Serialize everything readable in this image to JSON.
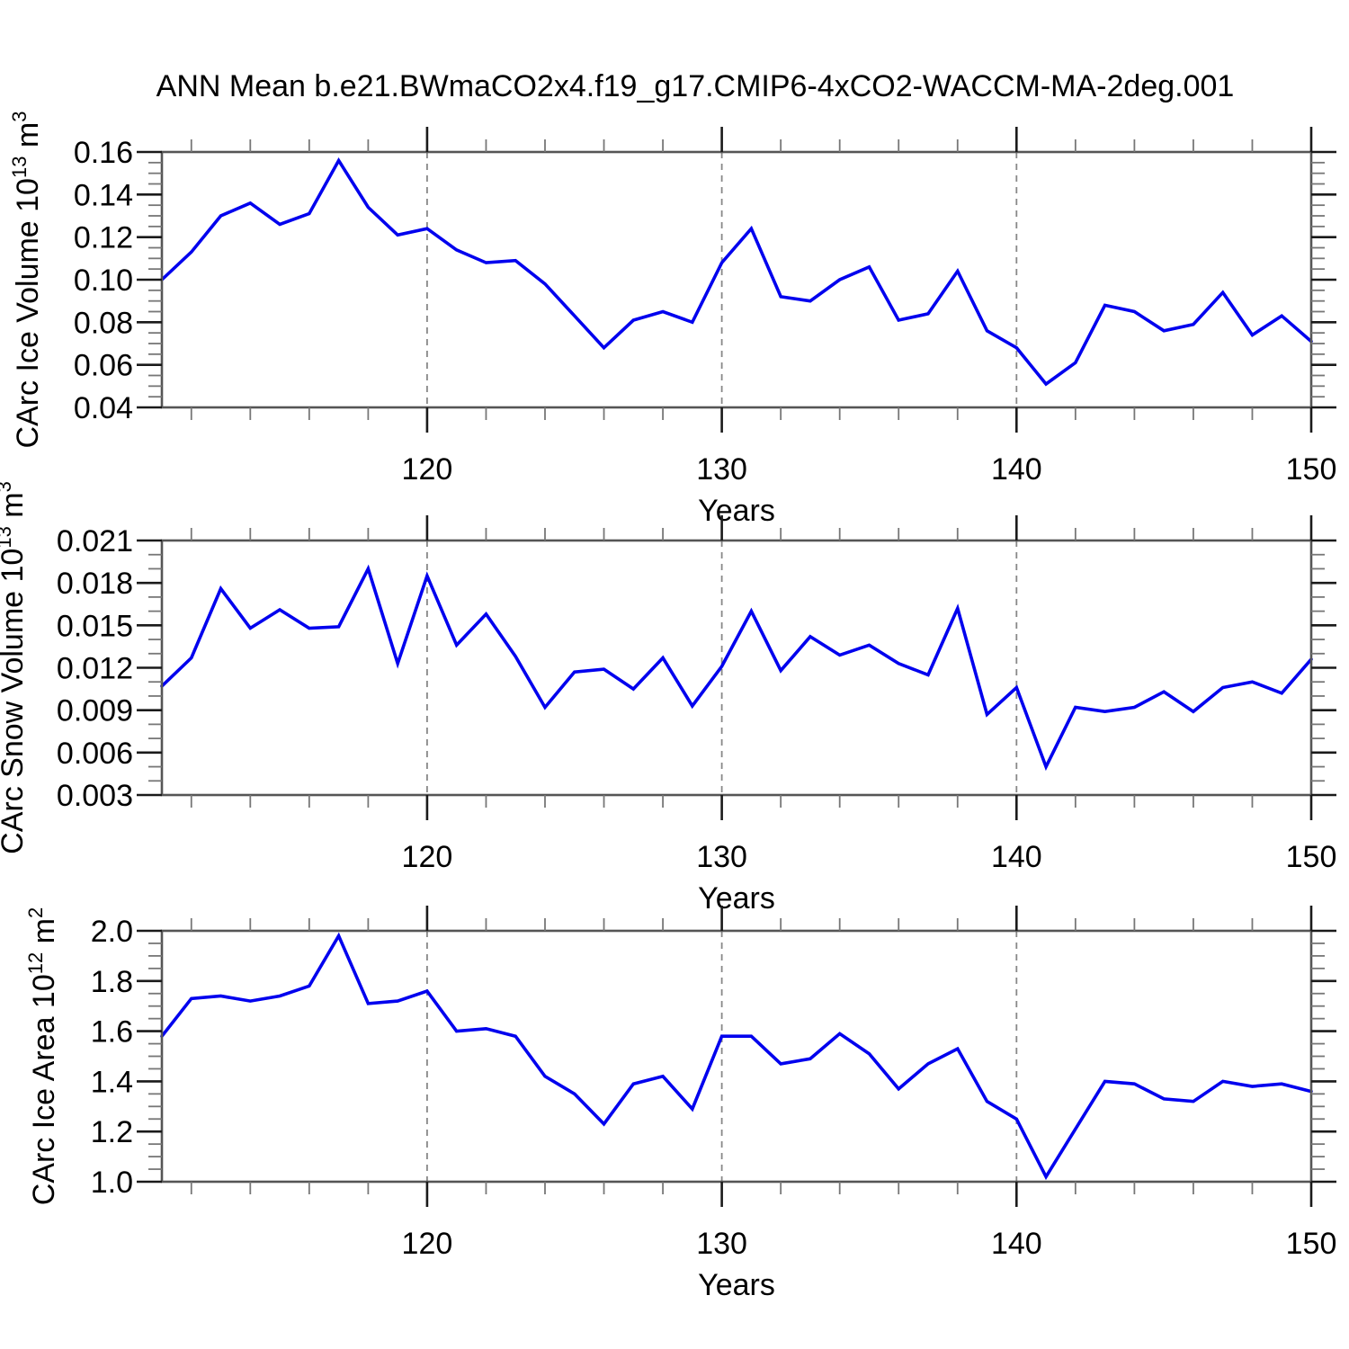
{
  "title": "ANN Mean b.e21.BWmaCO2x4.f19_g17.CMIP6-4xCO2-WACCM-MA-2deg.001",
  "colors": {
    "line": "#0000ee",
    "frame": "#555555",
    "tick_major": "#1a1a1a",
    "tick_minor": "#777777",
    "grid": "#888888",
    "text": "#000000",
    "background": "#ffffff"
  },
  "x_axis": {
    "label": "Years",
    "range": [
      111,
      150
    ],
    "major_ticks": [
      120,
      130,
      140,
      150
    ],
    "minor_tick_step": 2,
    "gridlines": [
      120,
      130,
      140
    ]
  },
  "years": [
    111,
    112,
    113,
    114,
    115,
    116,
    117,
    118,
    119,
    120,
    121,
    122,
    123,
    124,
    125,
    126,
    127,
    128,
    129,
    130,
    131,
    132,
    133,
    134,
    135,
    136,
    137,
    138,
    139,
    140,
    141,
    142,
    143,
    144,
    145,
    146,
    147,
    148,
    149,
    150
  ],
  "chart_data": [
    {
      "type": "line",
      "name": "carc-ice-volume",
      "ylabel_parts": [
        {
          "t": "CArc Ice Volume 10"
        },
        {
          "t": "13",
          "sup": true
        },
        {
          "t": " m"
        },
        {
          "t": "3",
          "sup": true
        }
      ],
      "ylabel_text": "CArc Ice Volume 10^13 m^3",
      "ylim": [
        0.04,
        0.16
      ],
      "ytick_values": [
        0.04,
        0.06,
        0.08,
        0.1,
        0.12,
        0.14,
        0.16
      ],
      "ytick_labels": [
        "0.04",
        "0.06",
        "0.08",
        "0.10",
        "0.12",
        "0.14",
        "0.16"
      ],
      "yminor_step": 0.005,
      "values": [
        0.1,
        0.113,
        0.13,
        0.136,
        0.126,
        0.131,
        0.156,
        0.134,
        0.121,
        0.124,
        0.114,
        0.108,
        0.109,
        0.098,
        0.083,
        0.068,
        0.081,
        0.085,
        0.08,
        0.108,
        0.124,
        0.092,
        0.09,
        0.1,
        0.106,
        0.081,
        0.084,
        0.104,
        0.076,
        0.068,
        0.051,
        0.061,
        0.088,
        0.085,
        0.076,
        0.079,
        0.094,
        0.074,
        0.083,
        0.071
      ]
    },
    {
      "type": "line",
      "name": "carc-snow-volume",
      "ylabel_parts": [
        {
          "t": "CArc Snow Volume 10"
        },
        {
          "t": "13",
          "sup": true
        },
        {
          "t": " m"
        },
        {
          "t": "3",
          "sup": true
        }
      ],
      "ylabel_text": "CArc Snow Volume 10^13 m^3",
      "ylim": [
        0.003,
        0.021
      ],
      "ytick_values": [
        0.003,
        0.006,
        0.009,
        0.012,
        0.015,
        0.018,
        0.021
      ],
      "ytick_labels": [
        "0.003",
        "0.006",
        "0.009",
        "0.012",
        "0.015",
        "0.018",
        "0.021"
      ],
      "yminor_step": 0.001,
      "values": [
        0.0107,
        0.0127,
        0.0176,
        0.0148,
        0.0161,
        0.0148,
        0.0149,
        0.019,
        0.0123,
        0.0185,
        0.0136,
        0.0158,
        0.0128,
        0.0092,
        0.0117,
        0.0119,
        0.0105,
        0.0127,
        0.0093,
        0.0121,
        0.016,
        0.0118,
        0.0142,
        0.0129,
        0.0136,
        0.0123,
        0.0115,
        0.0162,
        0.0087,
        0.0106,
        0.005,
        0.0092,
        0.0089,
        0.0092,
        0.0103,
        0.0089,
        0.0106,
        0.011,
        0.0102,
        0.0126
      ]
    },
    {
      "type": "line",
      "name": "carc-ice-area",
      "ylabel_parts": [
        {
          "t": "CArc Ice Area 10"
        },
        {
          "t": "12",
          "sup": true
        },
        {
          "t": " m"
        },
        {
          "t": "2",
          "sup": true
        }
      ],
      "ylabel_text": "CArc Ice Area 10^12 m^2",
      "ylim": [
        1.0,
        2.0
      ],
      "ytick_values": [
        1.0,
        1.2,
        1.4,
        1.6,
        1.8,
        2.0
      ],
      "ytick_labels": [
        "1.0",
        "1.2",
        "1.4",
        "1.6",
        "1.8",
        "2.0"
      ],
      "yminor_step": 0.05,
      "values": [
        1.58,
        1.73,
        1.74,
        1.72,
        1.74,
        1.78,
        1.98,
        1.71,
        1.72,
        1.76,
        1.6,
        1.61,
        1.58,
        1.42,
        1.35,
        1.23,
        1.39,
        1.42,
        1.29,
        1.58,
        1.58,
        1.47,
        1.49,
        1.59,
        1.51,
        1.37,
        1.47,
        1.53,
        1.32,
        1.25,
        1.02,
        1.21,
        1.4,
        1.39,
        1.33,
        1.32,
        1.4,
        1.38,
        1.39,
        1.36
      ]
    }
  ]
}
